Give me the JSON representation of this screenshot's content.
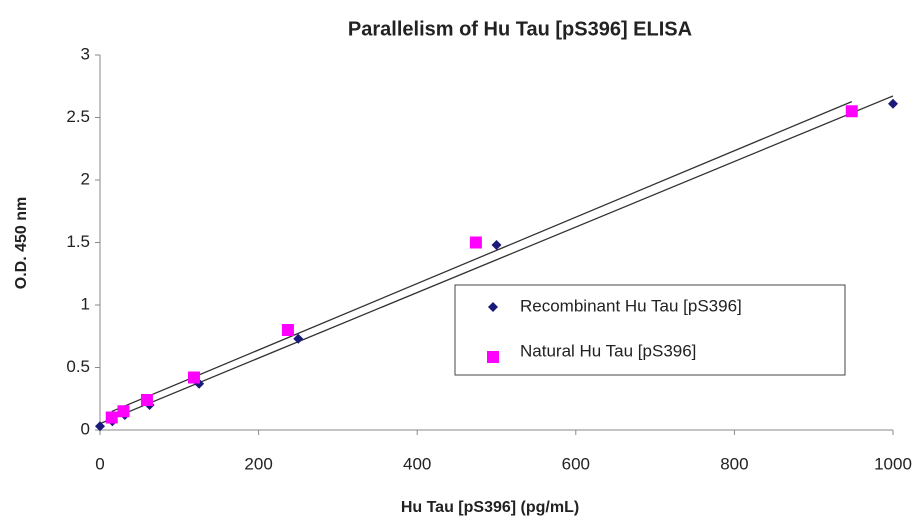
{
  "chart_data": {
    "type": "scatter",
    "title": "Parallelism of Hu Tau [pS396] ELISA",
    "x_label": "Hu Tau [pS396] (pg/mL)",
    "y_label": "O.D. 450 nm",
    "xlim": [
      0,
      1000
    ],
    "xticks": [
      0,
      200,
      400,
      600,
      800,
      1000
    ],
    "ylim": [
      0,
      3
    ],
    "yticks": [
      0,
      0.5,
      1,
      1.5,
      2,
      2.5,
      3
    ],
    "grid": false,
    "legend": "right",
    "trendline": true,
    "series": [
      {
        "name": "Recombinant Hu Tau [pS396]",
        "color": "#1a1a7a",
        "marker": "diamond",
        "x": [
          0,
          15.6,
          31.3,
          62.5,
          125,
          250,
          500,
          1000
        ],
        "values": [
          0.03,
          0.07,
          0.12,
          0.2,
          0.37,
          0.73,
          1.48,
          2.61
        ]
      },
      {
        "name": "Natural Hu Tau [pS396]",
        "color": "#ff00ff",
        "marker": "square",
        "x": [
          14.8,
          29.6,
          59.2,
          118.5,
          237,
          474,
          948
        ],
        "values": [
          0.1,
          0.15,
          0.24,
          0.42,
          0.8,
          1.5,
          2.55
        ]
      }
    ]
  }
}
